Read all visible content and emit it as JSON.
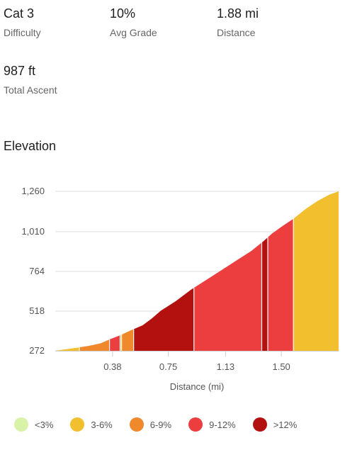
{
  "stats": [
    {
      "value": "Cat 3",
      "label": "Difficulty"
    },
    {
      "value": "10%",
      "label": "Avg Grade"
    },
    {
      "value": "1.88 mi",
      "label": "Distance"
    },
    {
      "value": "987 ft",
      "label": "Total Ascent"
    }
  ],
  "section_title": "Elevation",
  "chart_data": {
    "type": "area",
    "title": "",
    "xlabel": "Distance (mi)",
    "ylabel": "",
    "x_ticks": [
      "0.38",
      "0.75",
      "1.13",
      "1.50"
    ],
    "x_tick_values": [
      0.38,
      0.75,
      1.13,
      1.5
    ],
    "y_ticks": [
      "272",
      "518",
      "764",
      "1,010",
      "1,260"
    ],
    "y_tick_values": [
      272,
      518,
      764,
      1010,
      1260
    ],
    "xlim": [
      0,
      1.88
    ],
    "ylim": [
      272,
      1260
    ],
    "grid": true,
    "legend_position": "bottom",
    "points": [
      [
        0.0,
        272
      ],
      [
        0.15,
        292
      ],
      [
        0.22,
        302
      ],
      [
        0.3,
        318
      ],
      [
        0.36,
        342
      ],
      [
        0.44,
        372
      ],
      [
        0.5,
        398
      ],
      [
        0.58,
        430
      ],
      [
        0.64,
        472
      ],
      [
        0.7,
        520
      ],
      [
        0.8,
        580
      ],
      [
        0.9,
        650
      ],
      [
        1.0,
        710
      ],
      [
        1.1,
        770
      ],
      [
        1.2,
        830
      ],
      [
        1.3,
        890
      ],
      [
        1.38,
        950
      ],
      [
        1.44,
        1000
      ],
      [
        1.5,
        1040
      ],
      [
        1.58,
        1090
      ],
      [
        1.66,
        1150
      ],
      [
        1.74,
        1200
      ],
      [
        1.82,
        1240
      ],
      [
        1.88,
        1260
      ]
    ],
    "segments": [
      {
        "start": 0.0,
        "end": 0.16,
        "category": "3-6%"
      },
      {
        "start": 0.16,
        "end": 0.36,
        "category": "6-9%"
      },
      {
        "start": 0.36,
        "end": 0.43,
        "category": "9-12%"
      },
      {
        "start": 0.43,
        "end": 0.44,
        "category": "3-6%"
      },
      {
        "start": 0.44,
        "end": 0.52,
        "category": "6-9%"
      },
      {
        "start": 0.52,
        "end": 0.92,
        "category": ">12%"
      },
      {
        "start": 0.92,
        "end": 1.37,
        "category": "9-12%"
      },
      {
        "start": 1.37,
        "end": 1.41,
        "category": ">12%"
      },
      {
        "start": 1.41,
        "end": 1.58,
        "category": "9-12%"
      },
      {
        "start": 1.58,
        "end": 1.88,
        "category": "3-6%"
      }
    ],
    "categories": [
      "<3%",
      "3-6%",
      "6-9%",
      "9-12%",
      ">12%"
    ],
    "colors": {
      "<3%": "#d8f2a8",
      "3-6%": "#f2bf2f",
      "6-9%": "#f0882c",
      "9-12%": "#ec3d3f",
      ">12%": "#b3110f"
    }
  },
  "legend": [
    {
      "label": "<3%",
      "color": "#d8f2a8"
    },
    {
      "label": "3-6%",
      "color": "#f2bf2f"
    },
    {
      "label": "6-9%",
      "color": "#f0882c"
    },
    {
      "label": "9-12%",
      "color": "#ec3d3f"
    },
    {
      "label": ">12%",
      "color": "#b3110f"
    }
  ]
}
